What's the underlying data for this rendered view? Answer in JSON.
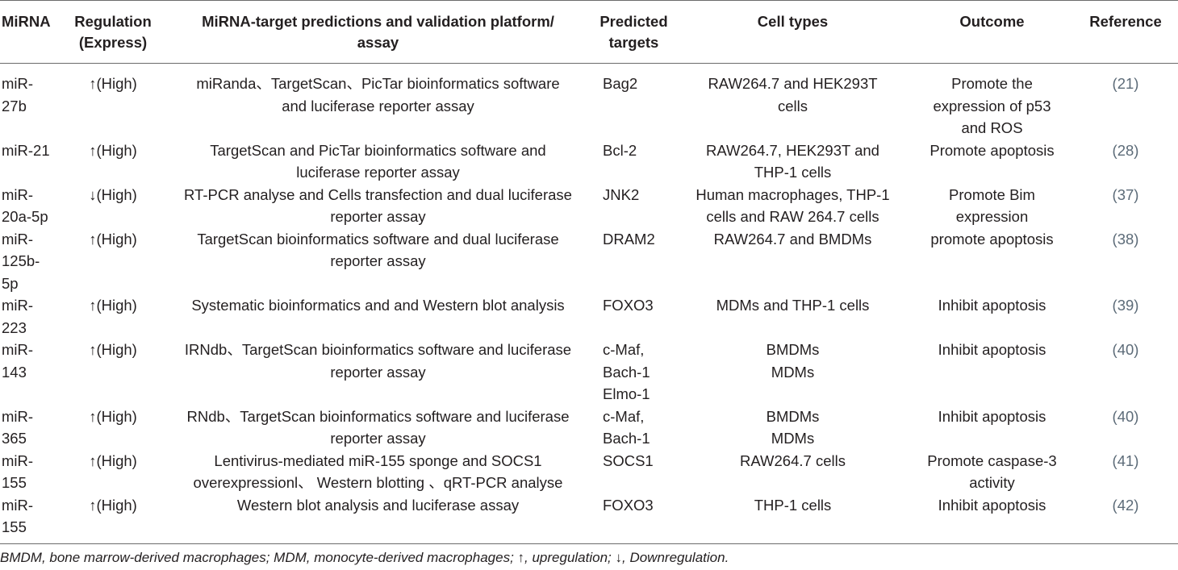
{
  "table": {
    "headers": [
      [
        "MiRNA"
      ],
      [
        "Regulation",
        "(Express)"
      ],
      [
        "MiRNA-target predictions and validation platform/",
        "assay"
      ],
      [
        "Predicted",
        "targets"
      ],
      [
        "Cell types"
      ],
      [
        "Outcome"
      ],
      [
        "Reference"
      ]
    ],
    "rows": [
      {
        "mirna": [
          "miR-",
          "27b"
        ],
        "regulation": "↑(High)",
        "platform": [
          "miRanda、TargetScan、PicTar bioinformatics software",
          "and luciferase reporter assay"
        ],
        "targets": [
          "Bag2"
        ],
        "cells": [
          "RAW264.7 and HEK293T",
          "cells"
        ],
        "outcome": [
          "Promote the",
          "expression of p53",
          "and ROS"
        ],
        "reference": "(21)"
      },
      {
        "mirna": [
          "miR-21"
        ],
        "regulation": "↑(High)",
        "platform": [
          "TargetScan and PicTar bioinformatics software and",
          "luciferase reporter assay"
        ],
        "targets": [
          "Bcl-2"
        ],
        "cells": [
          "RAW264.7, HEK293T and",
          "THP-1 cells"
        ],
        "outcome": [
          "Promote apoptosis"
        ],
        "reference": "(28)"
      },
      {
        "mirna": [
          "miR-",
          "20a-5p"
        ],
        "regulation": "↓(High)",
        "platform": [
          "RT-PCR analyse and Cells transfection and dual luciferase",
          "reporter assay"
        ],
        "targets": [
          "JNK2"
        ],
        "cells": [
          "Human macrophages, THP-1",
          "cells and RAW 264.7 cells"
        ],
        "outcome": [
          "Promote Bim",
          "expression"
        ],
        "reference": "(37)"
      },
      {
        "mirna": [
          "miR-",
          "125b-",
          "5p"
        ],
        "regulation": "↑(High)",
        "platform": [
          "TargetScan bioinformatics software and dual luciferase",
          "reporter assay"
        ],
        "targets": [
          "DRAM2"
        ],
        "cells": [
          "RAW264.7 and BMDMs"
        ],
        "outcome": [
          "promote apoptosis"
        ],
        "reference": "(38)"
      },
      {
        "mirna": [
          "miR-",
          "223"
        ],
        "regulation": "↑(High)",
        "platform": [
          "Systematic bioinformatics and and Western blot analysis"
        ],
        "targets": [
          "FOXO3"
        ],
        "cells": [
          "MDMs and THP-1 cells"
        ],
        "outcome": [
          "Inhibit apoptosis"
        ],
        "reference": "(39)"
      },
      {
        "mirna": [
          "miR-",
          "143"
        ],
        "regulation": "↑(High)",
        "platform": [
          "IRNdb、TargetScan bioinformatics software and luciferase",
          "reporter assay"
        ],
        "targets": [
          "c-Maf,",
          "Bach-1",
          "Elmo-1"
        ],
        "cells": [
          "BMDMs",
          "MDMs"
        ],
        "outcome": [
          "Inhibit apoptosis"
        ],
        "reference": "(40)"
      },
      {
        "mirna": [
          "miR-",
          "365"
        ],
        "regulation": "↑(High)",
        "platform": [
          "RNdb、TargetScan bioinformatics software and luciferase",
          "reporter assay"
        ],
        "targets": [
          "c-Maf,",
          "Bach-1"
        ],
        "cells": [
          "BMDMs",
          "MDMs"
        ],
        "outcome": [
          "Inhibit apoptosis"
        ],
        "reference": "(40)"
      },
      {
        "mirna": [
          "miR-",
          "155"
        ],
        "regulation": "↑(High)",
        "platform": [
          "Lentivirus-mediated miR-155 sponge and SOCS1",
          "overexpressionl、 Western blotting 、qRT-PCR analyse"
        ],
        "targets": [
          "SOCS1"
        ],
        "cells": [
          "RAW264.7 cells"
        ],
        "outcome": [
          "Promote caspase-3",
          "activity"
        ],
        "reference": "(41)"
      },
      {
        "mirna": [
          "miR-",
          "155"
        ],
        "regulation": "↑(High)",
        "platform": [
          "Western blot analysis and luciferase assay"
        ],
        "targets": [
          "FOXO3"
        ],
        "cells": [
          "THP-1 cells"
        ],
        "outcome": [
          "Inhibit apoptosis"
        ],
        "reference": "(42)"
      }
    ]
  },
  "footnote": "BMDM, bone marrow-derived macrophages; MDM, monocyte-derived macrophages; ↑, upregulation; ↓, Downregulation."
}
